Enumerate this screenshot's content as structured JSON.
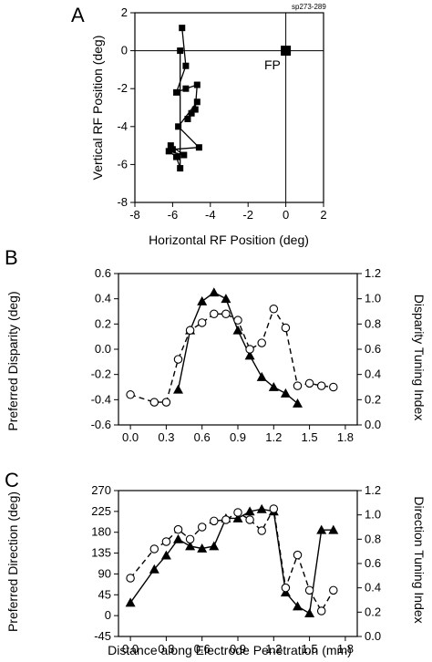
{
  "chart_data": [
    {
      "panel_label": "A",
      "type": "scatter",
      "tag": "sp273-289",
      "xlabel": "Horizontal RF Position (deg)",
      "ylabel": "Vertical RF Position (deg)",
      "xlim": [
        -8,
        2
      ],
      "ylim": [
        -8,
        2
      ],
      "xticks": [
        "-8",
        "-6",
        "-4",
        "-2",
        "0",
        "2"
      ],
      "yticks": [
        "2",
        "0",
        "-2",
        "-4",
        "-6",
        "-8"
      ],
      "annotation": "FP",
      "fixation_point": [
        0,
        0
      ],
      "points": [
        [
          -5.5,
          1.2
        ],
        [
          -5.3,
          -0.8
        ],
        [
          -5.8,
          -2.2
        ],
        [
          -5.3,
          -2.0
        ],
        [
          -4.7,
          -1.8
        ],
        [
          -4.8,
          -3.1
        ],
        [
          -5.0,
          -3.3
        ],
        [
          -5.2,
          -3.6
        ],
        [
          -4.7,
          -2.7
        ],
        [
          -5.7,
          -4.0
        ],
        [
          -4.6,
          -5.1
        ],
        [
          -6.0,
          -5.2
        ],
        [
          -6.1,
          -5.0
        ],
        [
          -5.4,
          -5.5
        ],
        [
          -6.2,
          -5.3
        ],
        [
          -5.8,
          -5.6
        ],
        [
          -5.6,
          -6.2
        ],
        [
          -5.6,
          0.0
        ]
      ]
    },
    {
      "panel_label": "B",
      "type": "line",
      "ylabel_left": "Preferred Disparity (deg)",
      "ylabel_right": "Disparity Tuning Index",
      "xlim": [
        -0.1,
        1.9
      ],
      "ylim_left": [
        -0.6,
        0.6
      ],
      "ylim_right": [
        0,
        1.2
      ],
      "xticks": [
        "0.0",
        "0.3",
        "0.6",
        "0.9",
        "1.2",
        "1.5",
        "1.8"
      ],
      "yticks_left": [
        "0.6",
        "0.4",
        "0.2",
        "0.0",
        "-0.2",
        "-0.4",
        "-0.6"
      ],
      "yticks_right": [
        "1.2",
        "1.0",
        "0.8",
        "0.6",
        "0.4",
        "0.2",
        "0.0"
      ],
      "series": [
        {
          "marker": "triangle",
          "line": "solid",
          "axis": "left",
          "x": [
            0.4,
            0.5,
            0.6,
            0.7,
            0.8,
            0.9,
            1.0,
            1.1,
            1.2,
            1.3,
            1.4
          ],
          "y": [
            -0.32,
            0.15,
            0.38,
            0.45,
            0.4,
            0.15,
            -0.05,
            -0.22,
            -0.3,
            -0.35,
            -0.43
          ]
        },
        {
          "marker": "circle",
          "line": "dashed",
          "axis": "right",
          "x": [
            0.0,
            0.2,
            0.3,
            0.4,
            0.5,
            0.6,
            0.7,
            0.8,
            0.9,
            1.0,
            1.1,
            1.2,
            1.3,
            1.4,
            1.5,
            1.6,
            1.7
          ],
          "y": [
            0.24,
            0.18,
            0.18,
            0.52,
            0.75,
            0.81,
            0.88,
            0.88,
            0.83,
            0.6,
            0.65,
            0.92,
            0.77,
            0.31,
            0.33,
            0.31,
            0.3
          ]
        }
      ]
    },
    {
      "panel_label": "C",
      "type": "line",
      "xlabel": "Distance along Electrode Penetration (mm)",
      "ylabel_left": "Preferred Direction (deg)",
      "ylabel_right": "Direction Tuning Index",
      "xlim": [
        -0.1,
        1.9
      ],
      "ylim_left": [
        -45,
        270
      ],
      "ylim_right": [
        0,
        1.2
      ],
      "xticks": [
        "0.0",
        "0.3",
        "0.6",
        "0.9",
        "1.2",
        "1.5",
        "1.8"
      ],
      "yticks_left": [
        "270",
        "225",
        "180",
        "135",
        "90",
        "45",
        "0",
        "-45"
      ],
      "yticks_right": [
        "1.2",
        "1.0",
        "0.8",
        "0.6",
        "0.4",
        "0.2",
        "0.0"
      ],
      "series": [
        {
          "marker": "triangle",
          "line": "solid",
          "axis": "left",
          "x": [
            0.0,
            0.2,
            0.3,
            0.4,
            0.5,
            0.6,
            0.7,
            0.8,
            0.9,
            1.0,
            1.1,
            1.2,
            1.3,
            1.4,
            1.5,
            1.6,
            1.7
          ],
          "y": [
            28,
            100,
            130,
            165,
            150,
            145,
            150,
            210,
            210,
            225,
            230,
            225,
            50,
            20,
            5,
            185,
            185
          ]
        },
        {
          "marker": "circle",
          "line": "dashed",
          "axis": "right",
          "x": [
            0.0,
            0.2,
            0.3,
            0.4,
            0.5,
            0.6,
            0.7,
            0.8,
            0.9,
            1.0,
            1.1,
            1.2,
            1.3,
            1.4,
            1.5,
            1.6,
            1.7
          ],
          "y": [
            0.48,
            0.72,
            0.78,
            0.88,
            0.8,
            0.9,
            0.95,
            0.96,
            1.02,
            0.96,
            0.87,
            1.05,
            0.4,
            0.67,
            0.38,
            0.21,
            0.38
          ]
        }
      ]
    }
  ]
}
